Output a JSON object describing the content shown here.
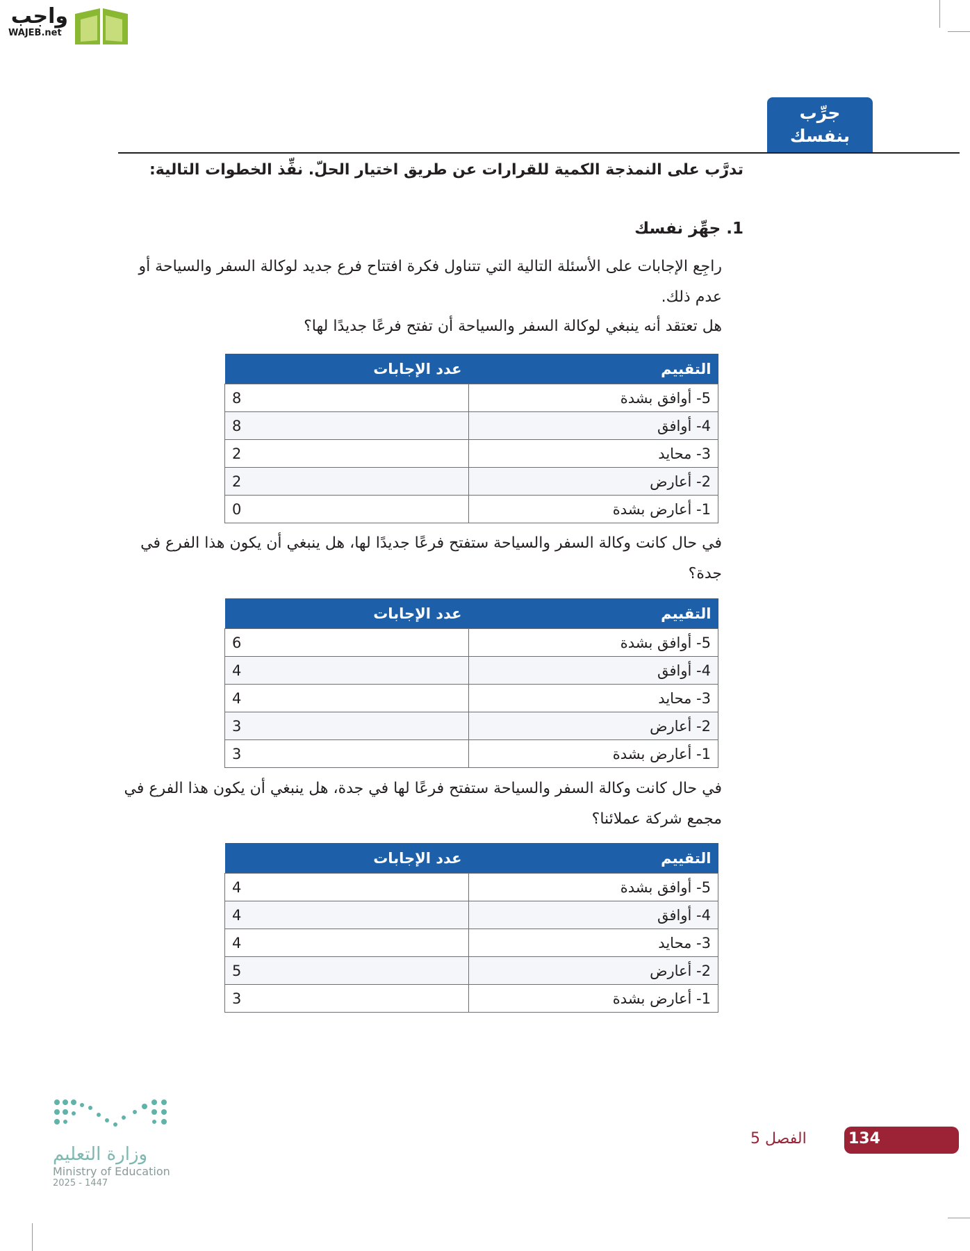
{
  "logo": {
    "arabic": "واجب",
    "latin": "WAJEB.net"
  },
  "section_tab": {
    "line1": "جرِّب",
    "line2": "بنفسك"
  },
  "intro": "تدرَّب على النمذجة الكمية للقرارات عن طريق اختيار الحلّ. نفِّذ الخطوات التالية:",
  "step": {
    "number": "1.",
    "title": "جهِّز نفسك"
  },
  "paragraph": "راجِع الإجابات على الأسئلة التالية التي تتناول فكرة افتتاح فرع جديد لوكالة السفر والسياحة أو عدم ذلك.",
  "questions": [
    {
      "text": "هل تعتقد أنه ينبغي لوكالة السفر والسياحة أن تفتح فرعًا جديدًا لها؟",
      "table": {
        "headers": [
          "التقييم",
          "عدد الإجابات"
        ],
        "rows": [
          [
            "5- أوافق بشدة",
            8
          ],
          [
            "4- أوافق",
            8
          ],
          [
            "3- محايد",
            2
          ],
          [
            "2- أعارض",
            2
          ],
          [
            "1- أعارض بشدة",
            0
          ]
        ]
      }
    },
    {
      "text": "في حال كانت وكالة السفر والسياحة ستفتح فرعًا جديدًا لها، هل ينبغي أن يكون هذا الفرع في جدة؟",
      "table": {
        "headers": [
          "التقييم",
          "عدد الإجابات"
        ],
        "rows": [
          [
            "5- أوافق بشدة",
            6
          ],
          [
            "4- أوافق",
            4
          ],
          [
            "3- محايد",
            4
          ],
          [
            "2- أعارض",
            3
          ],
          [
            "1- أعارض بشدة",
            3
          ]
        ]
      }
    },
    {
      "text": "في حال كانت وكالة السفر والسياحة ستفتح فرعًا لها في جدة، هل ينبغي أن يكون هذا الفرع في مجمع شركة عملائنا؟",
      "table": {
        "headers": [
          "التقييم",
          "عدد الإجابات"
        ],
        "rows": [
          [
            "5- أوافق بشدة",
            4
          ],
          [
            "4- أوافق",
            4
          ],
          [
            "3- محايد",
            4
          ],
          [
            "2- أعارض",
            5
          ],
          [
            "1- أعارض بشدة",
            3
          ]
        ]
      }
    }
  ],
  "footer": {
    "page": "134",
    "chapter": "الفصل 5"
  },
  "ministry": {
    "arabic": "وزارة التعليم",
    "english": "Ministry of Education",
    "year": "2025 - 1447"
  }
}
